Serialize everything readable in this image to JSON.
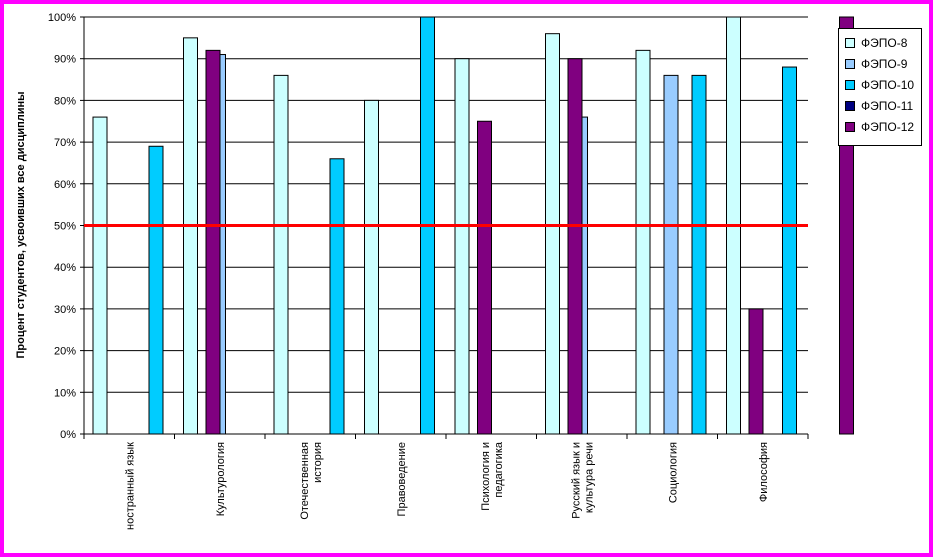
{
  "chart_data": {
    "type": "bar",
    "ylabel": "Процент студентов, усвоивших все дисциплины",
    "ylim": [
      0,
      100
    ],
    "ytick_labels": [
      "0%",
      "10%",
      "20%",
      "30%",
      "40%",
      "50%",
      "60%",
      "70%",
      "80%",
      "90%",
      "100%"
    ],
    "categories": [
      "Иностранный язык",
      "Культурология",
      "Отечественная история",
      "Правоведение",
      "Психология и педагогика",
      "Русский язык и культура речи",
      "Социология",
      "Философия"
    ],
    "category_lines": [
      [
        "ностранный язык"
      ],
      [
        "Культурология"
      ],
      [
        "Отечественная",
        "история"
      ],
      [
        "Правоведение"
      ],
      [
        "Психология и",
        "педагогика"
      ],
      [
        "Русский язык и",
        "культура речи"
      ],
      [
        "Социология"
      ],
      [
        "Философия"
      ]
    ],
    "series": [
      {
        "name": "ФЭПО-8",
        "color": "#ccffff",
        "values": [
          76,
          95,
          86,
          80,
          90,
          96,
          92,
          100
        ]
      },
      {
        "name": "ФЭПО-9",
        "color": "#99ccff",
        "values": [
          null,
          91,
          null,
          null,
          null,
          76,
          86,
          null
        ]
      },
      {
        "name": "ФЭПО-10",
        "color": "#00ccff",
        "values": [
          69,
          null,
          66,
          100,
          null,
          null,
          86,
          88
        ]
      },
      {
        "name": "ФЭПО-11",
        "color": "#000080",
        "values": [
          null,
          null,
          null,
          null,
          null,
          null,
          null,
          null
        ]
      },
      {
        "name": "ФЭПО-12",
        "color": "#800080",
        "values": [
          92,
          null,
          null,
          75,
          90,
          null,
          30,
          100
        ]
      }
    ],
    "reference_line": {
      "value": 50,
      "color": "#ff0000"
    },
    "grid": true,
    "legend_position": "right",
    "border_color": "#ff00ff"
  }
}
